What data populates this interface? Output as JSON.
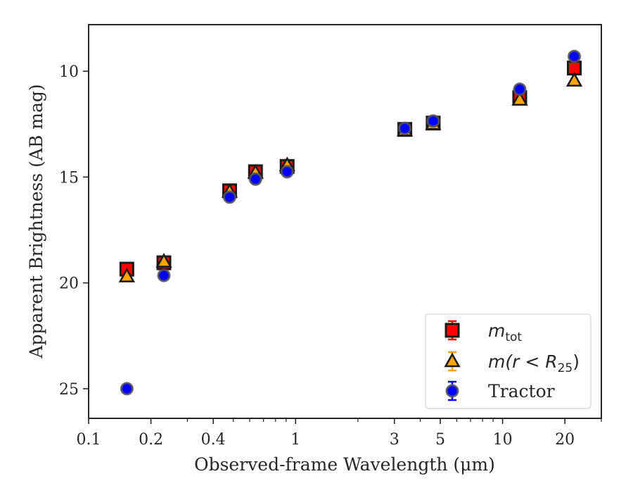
{
  "chart_data": {
    "type": "scatter",
    "xlabel": "Observed-frame Wavelength (μm)",
    "ylabel": "Apparent Brightness (AB mag)",
    "xscale": "log",
    "xlim": [
      0.1,
      30
    ],
    "ylim": [
      26.4,
      7.8
    ],
    "y_inverted": true,
    "x_ticks": [
      0.1,
      0.2,
      0.4,
      1,
      3,
      5,
      10,
      20
    ],
    "x_tick_labels": [
      "0.1",
      "0.2",
      "0.4",
      "1",
      "3",
      "5",
      "10",
      "20"
    ],
    "y_ticks": [
      10,
      15,
      20,
      25
    ],
    "y_tick_labels": [
      "10",
      "15",
      "20",
      "25"
    ],
    "grid": false,
    "legend_position": "lower-right",
    "series": [
      {
        "name": "m_tot",
        "legend_parts": {
          "base": "m",
          "sub": "tot"
        },
        "marker": "square",
        "color": "#ff0000",
        "edge": "#1a1a1a",
        "x": [
          0.153,
          0.231,
          0.48,
          0.64,
          0.91,
          3.37,
          4.62,
          12.1,
          22.2
        ],
        "y": [
          19.35,
          19.05,
          15.65,
          14.75,
          14.5,
          12.75,
          12.45,
          11.25,
          9.85
        ]
      },
      {
        "name": "m(r<R25)",
        "legend_parts": {
          "base": "m(r < R",
          "sub": "25",
          "tail": ")"
        },
        "marker": "triangle",
        "color": "#ffa500",
        "edge": "#1a1a1a",
        "x": [
          0.153,
          0.231,
          0.48,
          0.64,
          0.91,
          3.37,
          4.62,
          12.1,
          22.2
        ],
        "y": [
          19.7,
          19.0,
          15.7,
          14.8,
          14.45,
          12.8,
          12.5,
          11.35,
          10.45
        ]
      },
      {
        "name": "Tractor",
        "marker": "circle",
        "color": "#0000ff",
        "edge": "#555555",
        "x": [
          0.153,
          0.231,
          0.48,
          0.64,
          0.91,
          3.37,
          4.62,
          12.1,
          22.2
        ],
        "y": [
          25.0,
          19.65,
          15.95,
          15.1,
          14.75,
          12.7,
          12.35,
          10.85,
          9.3
        ]
      }
    ]
  }
}
